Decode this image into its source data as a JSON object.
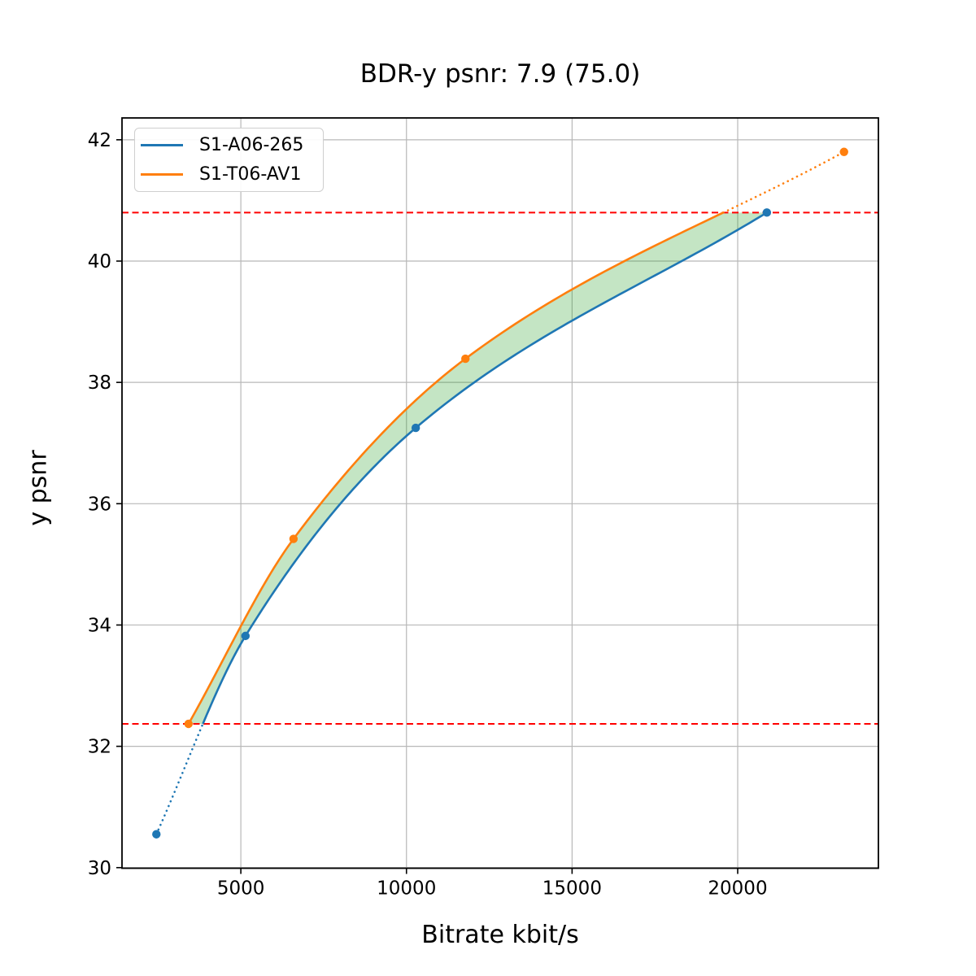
{
  "chart_data": {
    "type": "line",
    "title": "BDR-y psnr: 7.9 (75.0)",
    "xlabel": "Bitrate kbit/s",
    "ylabel": "y psnr",
    "xlim": [
      1412,
      24248
    ],
    "ylim": [
      29.99,
      42.36
    ],
    "xticks": [
      5000,
      10000,
      15000,
      20000
    ],
    "yticks": [
      30,
      32,
      34,
      36,
      38,
      40,
      42
    ],
    "grid": true,
    "legend_position": "upper-left",
    "series": [
      {
        "name": "S1-A06-265",
        "color": "#1f77b4",
        "points": [
          [
            2450,
            30.55
          ],
          [
            5140,
            33.82
          ],
          [
            10280,
            37.25
          ],
          [
            20880,
            40.8
          ]
        ]
      },
      {
        "name": "S1-T06-AV1",
        "color": "#ff7f0e",
        "points": [
          [
            3420,
            32.37
          ],
          [
            6590,
            35.42
          ],
          [
            11780,
            38.39
          ],
          [
            23210,
            41.8
          ]
        ]
      }
    ],
    "overlap_bounds": {
      "lower_psnr": 32.37,
      "upper_psnr": 40.8,
      "line_color": "#ff0000",
      "line_style": "dashed"
    },
    "fill_between": {
      "color": "#2ca02c",
      "opacity": 0.28
    },
    "colors": {
      "grid": "#b8b8b8",
      "spine": "#000000",
      "text": "#000000"
    }
  }
}
